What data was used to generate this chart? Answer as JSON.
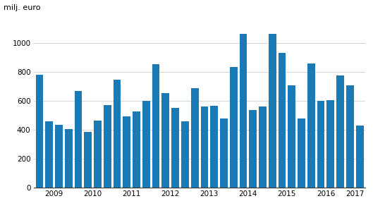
{
  "values": [
    780,
    460,
    435,
    405,
    670,
    385,
    465,
    570,
    745,
    490,
    525,
    600,
    855,
    655,
    550,
    460,
    685,
    560,
    565,
    475,
    835,
    1065,
    535,
    560,
    1065,
    930,
    705,
    475,
    860,
    600,
    605,
    775,
    705,
    430
  ],
  "year_labels": [
    2009,
    2010,
    2011,
    2012,
    2013,
    2014,
    2015,
    2016,
    2017
  ],
  "quarters_per_year": [
    4,
    4,
    4,
    4,
    4,
    4,
    4,
    4,
    2
  ],
  "bar_color": "#1a7ab5",
  "ylabel": "milj. euro",
  "ylim": [
    0,
    1150
  ],
  "yticks": [
    0,
    200,
    400,
    600,
    800,
    1000
  ],
  "background_color": "#ffffff",
  "grid_color": "#d0d0d0",
  "bar_width": 0.78
}
